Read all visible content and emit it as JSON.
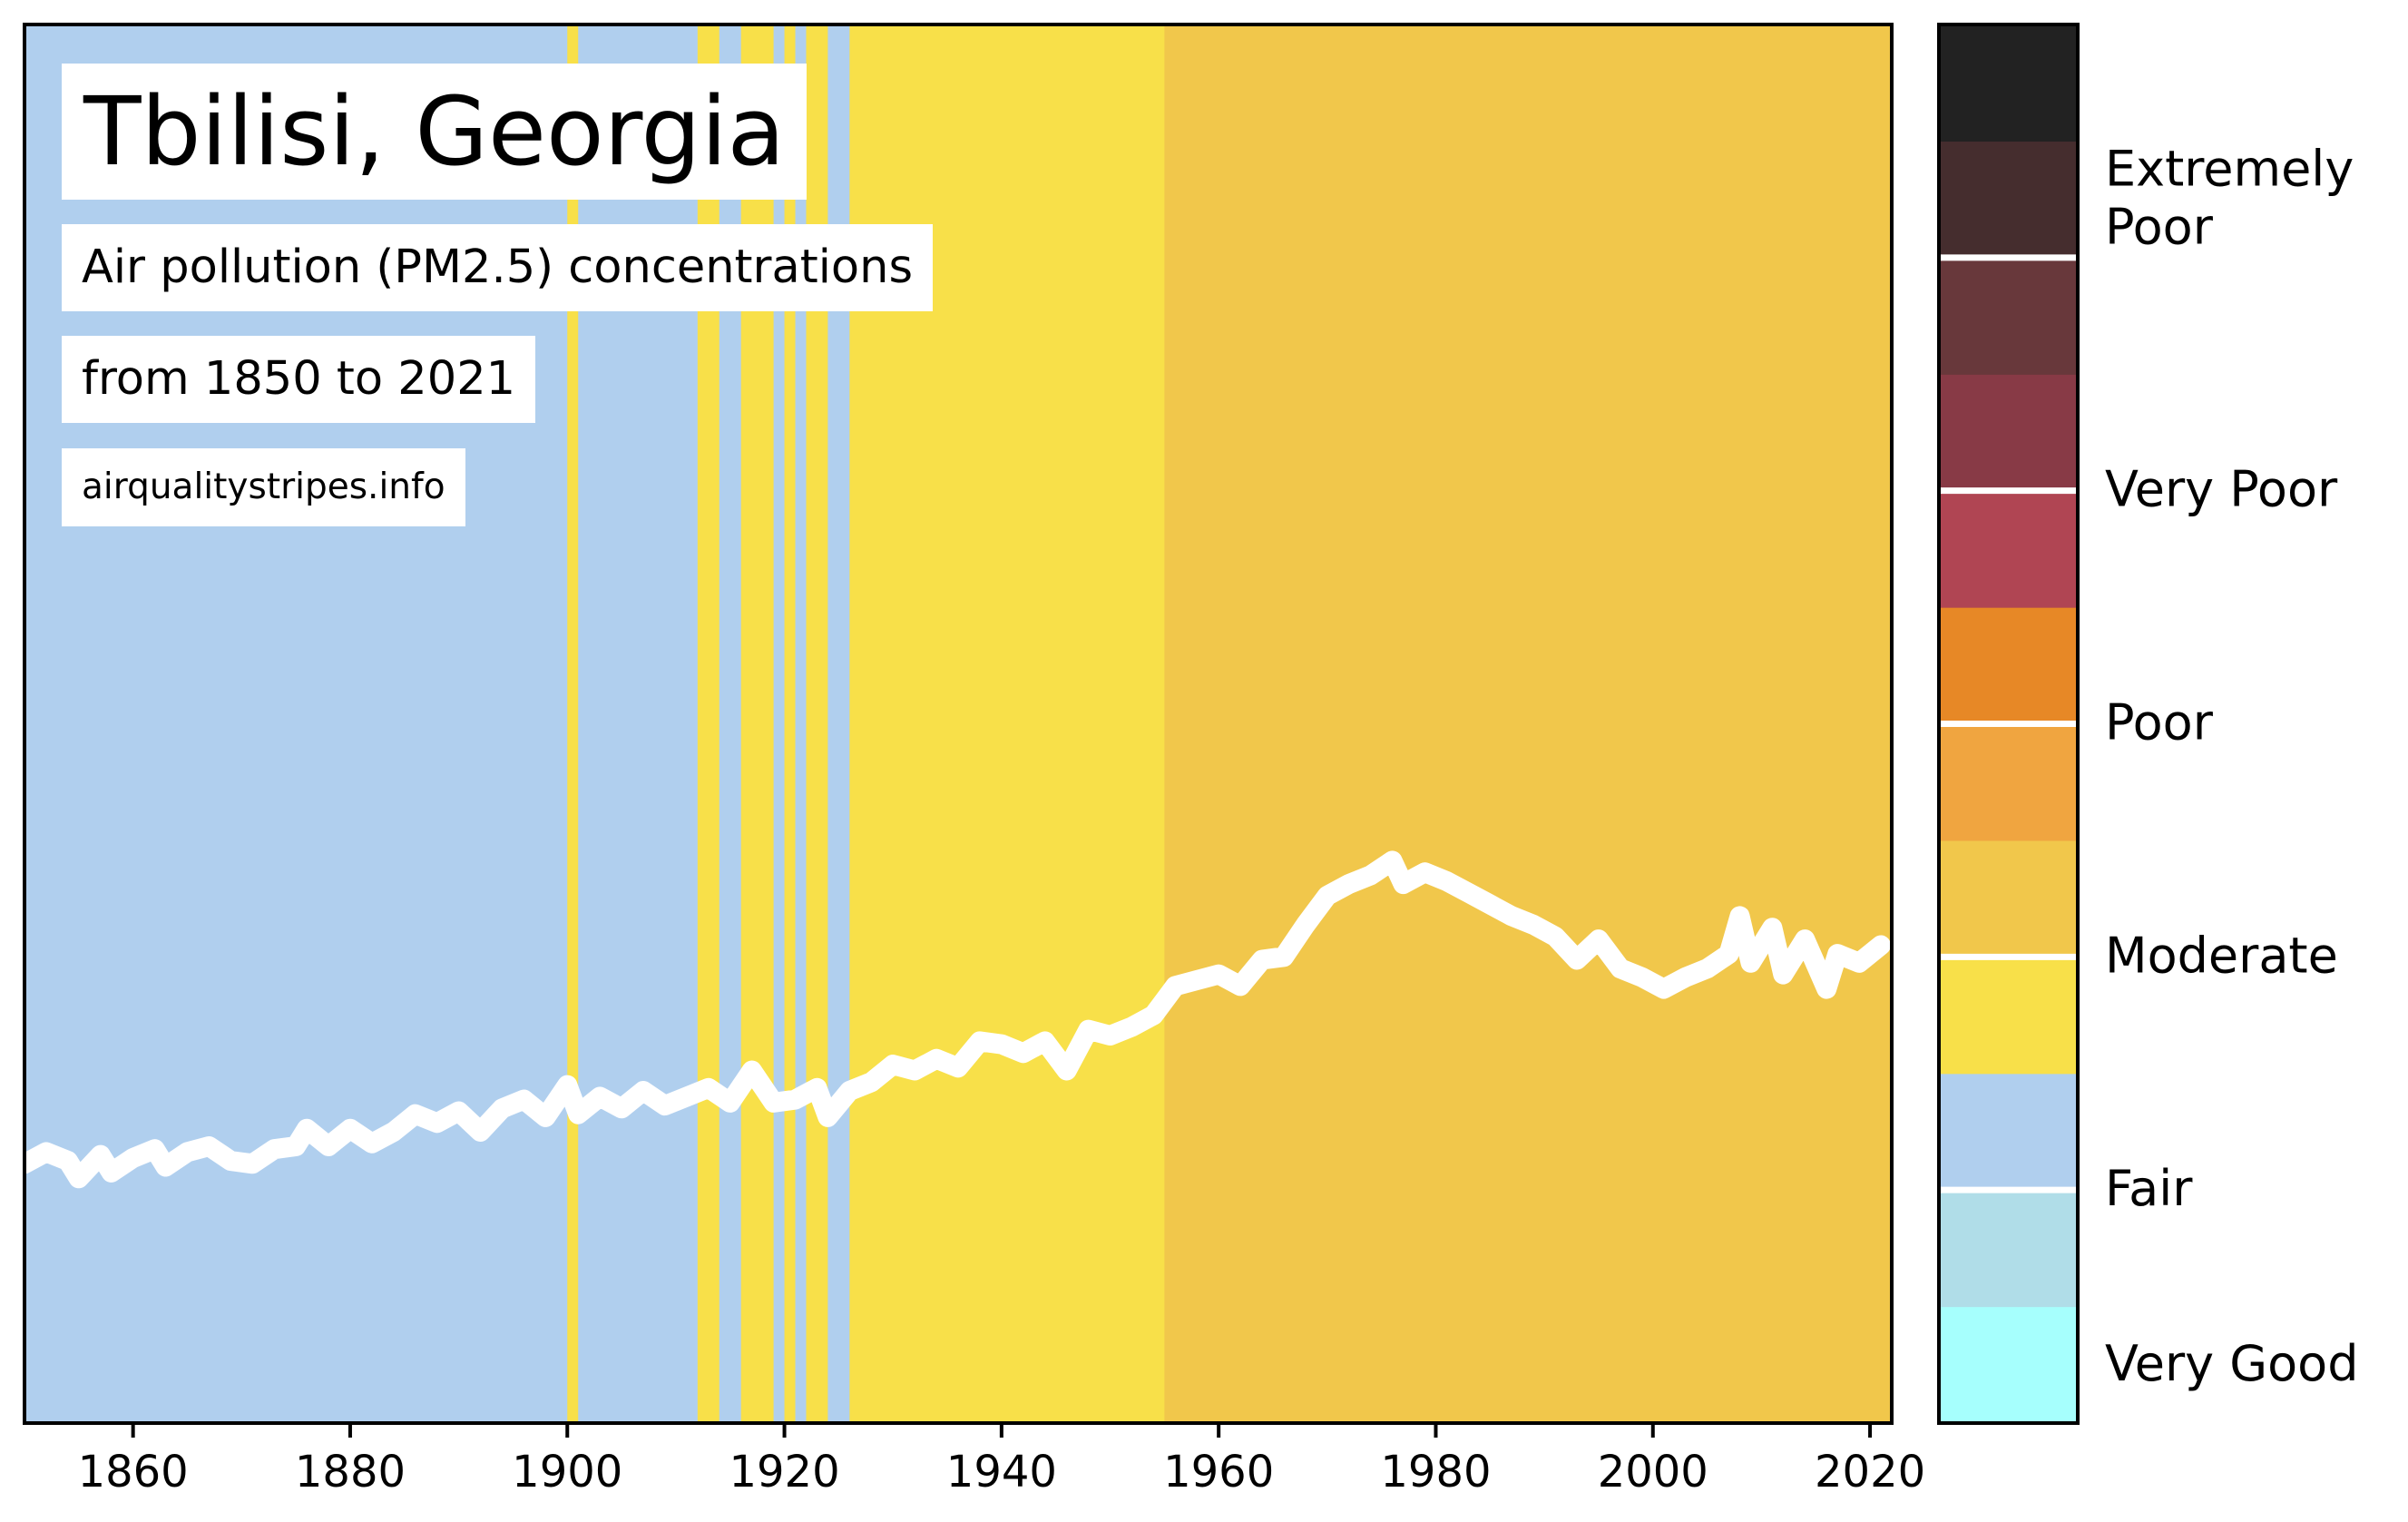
{
  "chart_data": {
    "type": "area",
    "title": "Tbilisi, Georgia",
    "subtitle": "Air pollution (PM2.5) concentrations",
    "date_range": "from 1850 to 2021",
    "source": "airqualitystripes.info",
    "x_range": [
      1850,
      2022
    ],
    "x_ticks": [
      1860,
      1880,
      1900,
      1920,
      1940,
      1960,
      1980,
      2000,
      2020
    ],
    "category_colors": {
      "fair": "#b0cfee",
      "moderate_light": "#f8e049",
      "moderate_dark": "#f1c74b"
    },
    "stripes": [
      {
        "from": 1850,
        "to": 1900,
        "category": "fair"
      },
      {
        "from": 1900,
        "to": 1901,
        "category": "moderate_light"
      },
      {
        "from": 1901,
        "to": 1912,
        "category": "fair"
      },
      {
        "from": 1912,
        "to": 1914,
        "category": "moderate_light"
      },
      {
        "from": 1914,
        "to": 1916,
        "category": "fair"
      },
      {
        "from": 1916,
        "to": 1919,
        "category": "moderate_light"
      },
      {
        "from": 1919,
        "to": 1920,
        "category": "fair"
      },
      {
        "from": 1920,
        "to": 1921,
        "category": "moderate_light"
      },
      {
        "from": 1921,
        "to": 1922,
        "category": "fair"
      },
      {
        "from": 1922,
        "to": 1924,
        "category": "moderate_light"
      },
      {
        "from": 1924,
        "to": 1926,
        "category": "fair"
      },
      {
        "from": 1926,
        "to": 1955,
        "category": "moderate_light"
      },
      {
        "from": 1955,
        "to": 2022,
        "category": "moderate_dark"
      }
    ],
    "line_color": "#ffffff",
    "line_points": [
      [
        1850,
        8.9
      ],
      [
        1852,
        9.3
      ],
      [
        1854,
        9.0
      ],
      [
        1855,
        8.4
      ],
      [
        1857,
        9.2
      ],
      [
        1858,
        8.6
      ],
      [
        1860,
        9.1
      ],
      [
        1862,
        9.4
      ],
      [
        1863,
        8.8
      ],
      [
        1865,
        9.3
      ],
      [
        1867,
        9.5
      ],
      [
        1869,
        9.0
      ],
      [
        1871,
        8.9
      ],
      [
        1873,
        9.4
      ],
      [
        1875,
        9.5
      ],
      [
        1876,
        10.1
      ],
      [
        1878,
        9.5
      ],
      [
        1880,
        10.1
      ],
      [
        1882,
        9.6
      ],
      [
        1884,
        10.0
      ],
      [
        1886,
        10.6
      ],
      [
        1888,
        10.3
      ],
      [
        1890,
        10.7
      ],
      [
        1892,
        10.0
      ],
      [
        1894,
        10.8
      ],
      [
        1896,
        11.1
      ],
      [
        1898,
        10.5
      ],
      [
        1900,
        11.6
      ],
      [
        1901,
        10.6
      ],
      [
        1903,
        11.2
      ],
      [
        1905,
        10.8
      ],
      [
        1907,
        11.4
      ],
      [
        1909,
        10.9
      ],
      [
        1911,
        11.2
      ],
      [
        1913,
        11.5
      ],
      [
        1915,
        11.0
      ],
      [
        1917,
        12.1
      ],
      [
        1919,
        11.0
      ],
      [
        1921,
        11.1
      ],
      [
        1923,
        11.5
      ],
      [
        1924,
        10.5
      ],
      [
        1926,
        11.4
      ],
      [
        1928,
        11.7
      ],
      [
        1930,
        12.3
      ],
      [
        1932,
        12.1
      ],
      [
        1934,
        12.5
      ],
      [
        1936,
        12.2
      ],
      [
        1938,
        13.1
      ],
      [
        1940,
        13.0
      ],
      [
        1942,
        12.7
      ],
      [
        1944,
        13.1
      ],
      [
        1946,
        12.1
      ],
      [
        1948,
        13.5
      ],
      [
        1950,
        13.3
      ],
      [
        1952,
        13.6
      ],
      [
        1954,
        14.0
      ],
      [
        1956,
        15.0
      ],
      [
        1958,
        15.2
      ],
      [
        1960,
        15.4
      ],
      [
        1962,
        15.0
      ],
      [
        1964,
        15.9
      ],
      [
        1966,
        16.0
      ],
      [
        1968,
        17.1
      ],
      [
        1970,
        18.1
      ],
      [
        1972,
        18.5
      ],
      [
        1974,
        18.8
      ],
      [
        1976,
        19.3
      ],
      [
        1977,
        18.5
      ],
      [
        1979,
        18.9
      ],
      [
        1981,
        18.6
      ],
      [
        1983,
        18.2
      ],
      [
        1985,
        17.8
      ],
      [
        1987,
        17.4
      ],
      [
        1989,
        17.1
      ],
      [
        1991,
        16.7
      ],
      [
        1993,
        15.9
      ],
      [
        1995,
        16.6
      ],
      [
        1997,
        15.6
      ],
      [
        1999,
        15.3
      ],
      [
        2001,
        14.9
      ],
      [
        2003,
        15.3
      ],
      [
        2005,
        15.6
      ],
      [
        2007,
        16.1
      ],
      [
        2008,
        17.4
      ],
      [
        2009,
        15.8
      ],
      [
        2011,
        17.0
      ],
      [
        2012,
        15.4
      ],
      [
        2014,
        16.6
      ],
      [
        2016,
        14.9
      ],
      [
        2017,
        16.1
      ],
      [
        2019,
        15.8
      ],
      [
        2021,
        16.4
      ]
    ],
    "y_range": [
      0,
      48
    ],
    "legend": {
      "type": "colorbar",
      "segments": [
        {
          "color": "#a6fffd"
        },
        {
          "color": "#b0dde8"
        },
        {
          "color": "#b0cfee"
        },
        {
          "color": "#f8e049"
        },
        {
          "color": "#f1c74b"
        },
        {
          "color": "#f0a540"
        },
        {
          "color": "#e78826"
        },
        {
          "color": "#b04553"
        },
        {
          "color": "#883a46"
        },
        {
          "color": "#68383b"
        },
        {
          "color": "#452d2e"
        },
        {
          "color": "#222222"
        }
      ],
      "separators_after": [
        1,
        3,
        5,
        7,
        9
      ],
      "labels": [
        {
          "text": "Very Good",
          "at": 0.5
        },
        {
          "text": "Fair",
          "at": 2
        },
        {
          "text": "Moderate",
          "at": 4
        },
        {
          "text": "Poor",
          "at": 6
        },
        {
          "text": "Very Poor",
          "at": 8
        },
        {
          "text": "Extremely",
          "at": 10.75
        },
        {
          "text": "Poor",
          "at": 10.25
        }
      ]
    }
  }
}
